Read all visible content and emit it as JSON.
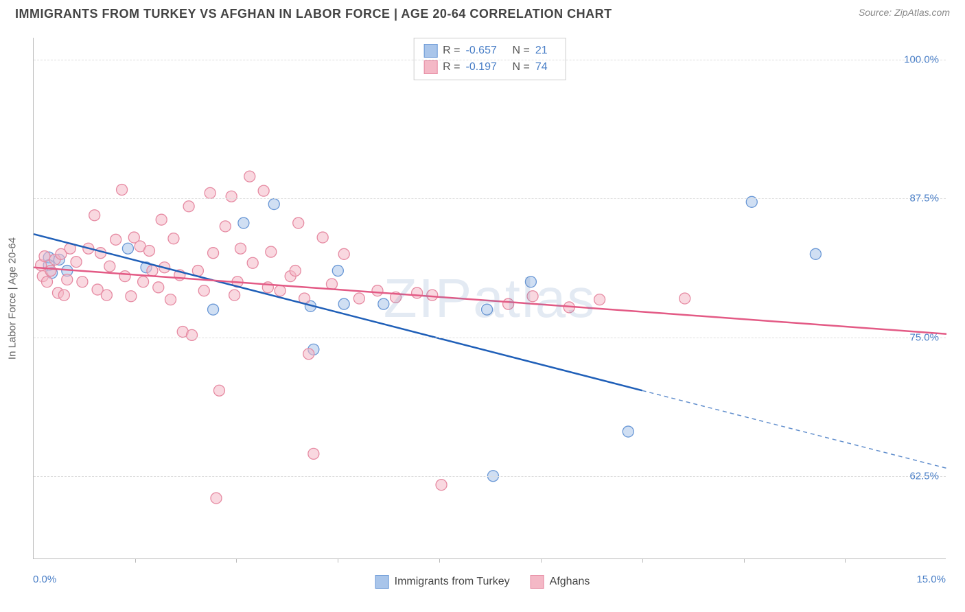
{
  "header": {
    "title": "IMMIGRANTS FROM TURKEY VS AFGHAN IN LABOR FORCE | AGE 20-64 CORRELATION CHART",
    "source": "Source: ZipAtlas.com"
  },
  "watermark": "ZIPatlas",
  "chart": {
    "type": "scatter",
    "ylabel": "In Labor Force | Age 20-64",
    "background_color": "#ffffff",
    "grid_color": "#dddddd",
    "axis_color": "#bbbbbb",
    "tick_label_color": "#4a7fc7",
    "xlim": [
      0.0,
      15.0
    ],
    "ylim": [
      55.0,
      102.0
    ],
    "x_end_labels": [
      "0.0%",
      "15.0%"
    ],
    "x_minor_ticks": [
      1.67,
      3.33,
      5.0,
      6.67,
      8.33,
      10.0,
      11.67,
      13.33
    ],
    "y_gridlines": [
      62.5,
      75.0,
      87.5,
      100.0
    ],
    "y_tick_labels": [
      "62.5%",
      "75.0%",
      "87.5%",
      "100.0%"
    ],
    "marker_radius": 8,
    "marker_opacity": 0.55,
    "line_width": 2.5,
    "series": [
      {
        "id": "turkey",
        "label": "Immigrants from Turkey",
        "color_fill": "#a9c5ea",
        "color_stroke": "#6a98d6",
        "line_color": "#1f5fb8",
        "R": "-0.657",
        "N": "21",
        "trend": {
          "x1": 0.0,
          "y1": 84.3,
          "x2": 10.0,
          "y2": 70.2,
          "dash_to_x": 15.0,
          "dash_to_y": 63.2
        },
        "points": [
          [
            0.25,
            82.2
          ],
          [
            0.25,
            81.5
          ],
          [
            0.3,
            80.8
          ],
          [
            0.42,
            82.0
          ],
          [
            0.55,
            81.0
          ],
          [
            1.55,
            83.0
          ],
          [
            1.85,
            81.3
          ],
          [
            2.95,
            77.5
          ],
          [
            3.45,
            85.3
          ],
          [
            3.95,
            87.0
          ],
          [
            4.55,
            77.8
          ],
          [
            4.6,
            73.9
          ],
          [
            5.0,
            81.0
          ],
          [
            5.1,
            78.0
          ],
          [
            5.75,
            78.0
          ],
          [
            7.55,
            62.5
          ],
          [
            7.45,
            77.5
          ],
          [
            8.17,
            80.0
          ],
          [
            9.77,
            66.5
          ],
          [
            11.8,
            87.2
          ],
          [
            12.85,
            82.5
          ]
        ]
      },
      {
        "id": "afghans",
        "label": "Afghans",
        "color_fill": "#f4b8c6",
        "color_stroke": "#e68aa2",
        "line_color": "#e35a85",
        "R": "-0.197",
        "N": "74",
        "trend": {
          "x1": 0.0,
          "y1": 81.3,
          "x2": 15.0,
          "y2": 75.3
        },
        "points": [
          [
            0.12,
            81.5
          ],
          [
            0.15,
            80.5
          ],
          [
            0.18,
            82.3
          ],
          [
            0.22,
            80.0
          ],
          [
            0.28,
            81.0
          ],
          [
            0.35,
            82.0
          ],
          [
            0.4,
            79.0
          ],
          [
            0.45,
            82.5
          ],
          [
            0.5,
            78.8
          ],
          [
            0.55,
            80.2
          ],
          [
            0.6,
            83.0
          ],
          [
            0.7,
            81.8
          ],
          [
            0.8,
            80.0
          ],
          [
            0.9,
            83.0
          ],
          [
            1.0,
            86.0
          ],
          [
            1.05,
            79.3
          ],
          [
            1.1,
            82.6
          ],
          [
            1.2,
            78.8
          ],
          [
            1.25,
            81.4
          ],
          [
            1.35,
            83.8
          ],
          [
            1.45,
            88.3
          ],
          [
            1.5,
            80.5
          ],
          [
            1.6,
            78.7
          ],
          [
            1.65,
            84.0
          ],
          [
            1.75,
            83.2
          ],
          [
            1.8,
            80.0
          ],
          [
            1.9,
            82.8
          ],
          [
            1.95,
            81.0
          ],
          [
            2.05,
            79.5
          ],
          [
            2.1,
            85.6
          ],
          [
            2.15,
            81.3
          ],
          [
            2.25,
            78.4
          ],
          [
            2.3,
            83.9
          ],
          [
            2.4,
            80.6
          ],
          [
            2.45,
            75.5
          ],
          [
            2.55,
            86.8
          ],
          [
            2.6,
            75.2
          ],
          [
            2.7,
            81.0
          ],
          [
            2.8,
            79.2
          ],
          [
            2.9,
            88.0
          ],
          [
            2.95,
            82.6
          ],
          [
            3.0,
            60.5
          ],
          [
            3.05,
            70.2
          ],
          [
            3.15,
            85.0
          ],
          [
            3.25,
            87.7
          ],
          [
            3.3,
            78.8
          ],
          [
            3.35,
            80.0
          ],
          [
            3.4,
            83.0
          ],
          [
            3.55,
            89.5
          ],
          [
            3.6,
            81.7
          ],
          [
            3.78,
            88.2
          ],
          [
            3.85,
            79.5
          ],
          [
            3.9,
            82.7
          ],
          [
            4.05,
            79.2
          ],
          [
            4.22,
            80.5
          ],
          [
            4.3,
            81.0
          ],
          [
            4.35,
            85.3
          ],
          [
            4.45,
            78.5
          ],
          [
            4.52,
            73.5
          ],
          [
            4.6,
            64.5
          ],
          [
            4.75,
            84.0
          ],
          [
            4.9,
            79.8
          ],
          [
            5.1,
            82.5
          ],
          [
            5.35,
            78.5
          ],
          [
            5.65,
            79.2
          ],
          [
            5.95,
            78.6
          ],
          [
            6.3,
            79.0
          ],
          [
            6.55,
            78.8
          ],
          [
            6.7,
            61.7
          ],
          [
            7.8,
            78.0
          ],
          [
            8.2,
            78.7
          ],
          [
            8.8,
            77.7
          ],
          [
            9.3,
            78.4
          ],
          [
            10.7,
            78.5
          ]
        ]
      }
    ]
  },
  "legend_bottom": {
    "items": [
      "Immigrants from Turkey",
      "Afghans"
    ]
  }
}
